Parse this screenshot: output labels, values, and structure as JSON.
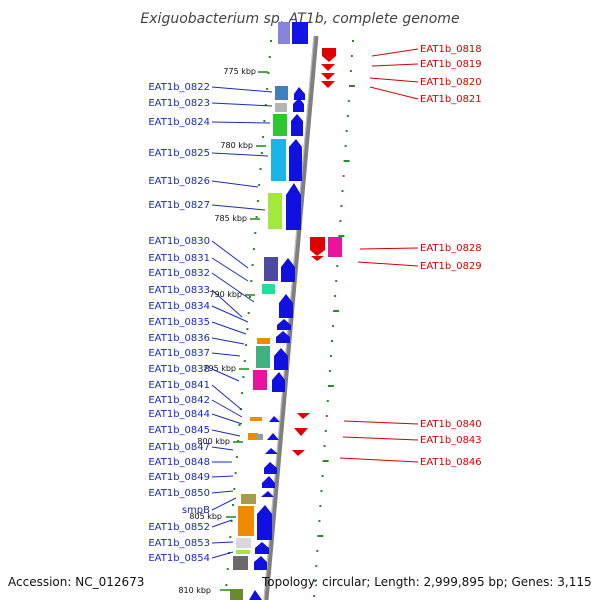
{
  "title": "Exiguobacterium sp. AT1b, complete genome",
  "footer": {
    "accession": "Accession: NC_012673",
    "topology": "Topology: circular; Length: 2,999,895 bp; Genes: 3,115"
  },
  "ticks": [
    "775 kbp",
    "780 kbp",
    "785 kbp",
    "790 kbp",
    "795 kbp",
    "800 kbp",
    "805 kbp",
    "810 kbp"
  ],
  "left_labels": [
    "EAT1b_0822",
    "EAT1b_0823",
    "EAT1b_0824",
    "EAT1b_0825",
    "EAT1b_0826",
    "EAT1b_0827",
    "EAT1b_0830",
    "EAT1b_0831",
    "EAT1b_0832",
    "EAT1b_0833",
    "EAT1b_0834",
    "EAT1b_0835",
    "EAT1b_0836",
    "EAT1b_0837",
    "EAT1b_0838",
    "EAT1b_0841",
    "EAT1b_0842",
    "EAT1b_0844",
    "EAT1b_0845",
    "EAT1b_0847",
    "EAT1b_0848",
    "EAT1b_0849",
    "EAT1b_0850",
    "smpB",
    "EAT1b_0852",
    "EAT1b_0853",
    "EAT1b_0854"
  ],
  "right_labels": [
    "EAT1b_0818",
    "EAT1b_0819",
    "EAT1b_0820",
    "EAT1b_0821",
    "EAT1b_0828",
    "EAT1b_0829",
    "EAT1b_0840",
    "EAT1b_0843",
    "EAT1b_0846"
  ],
  "colors": {
    "forward_strand": "#1010e0",
    "reverse_strand": "#e00000",
    "backbone": "#8a8a8a",
    "gc_skew": "#2a8a2a",
    "left_label": "#1a2db5",
    "right_label": "#d40000"
  }
}
